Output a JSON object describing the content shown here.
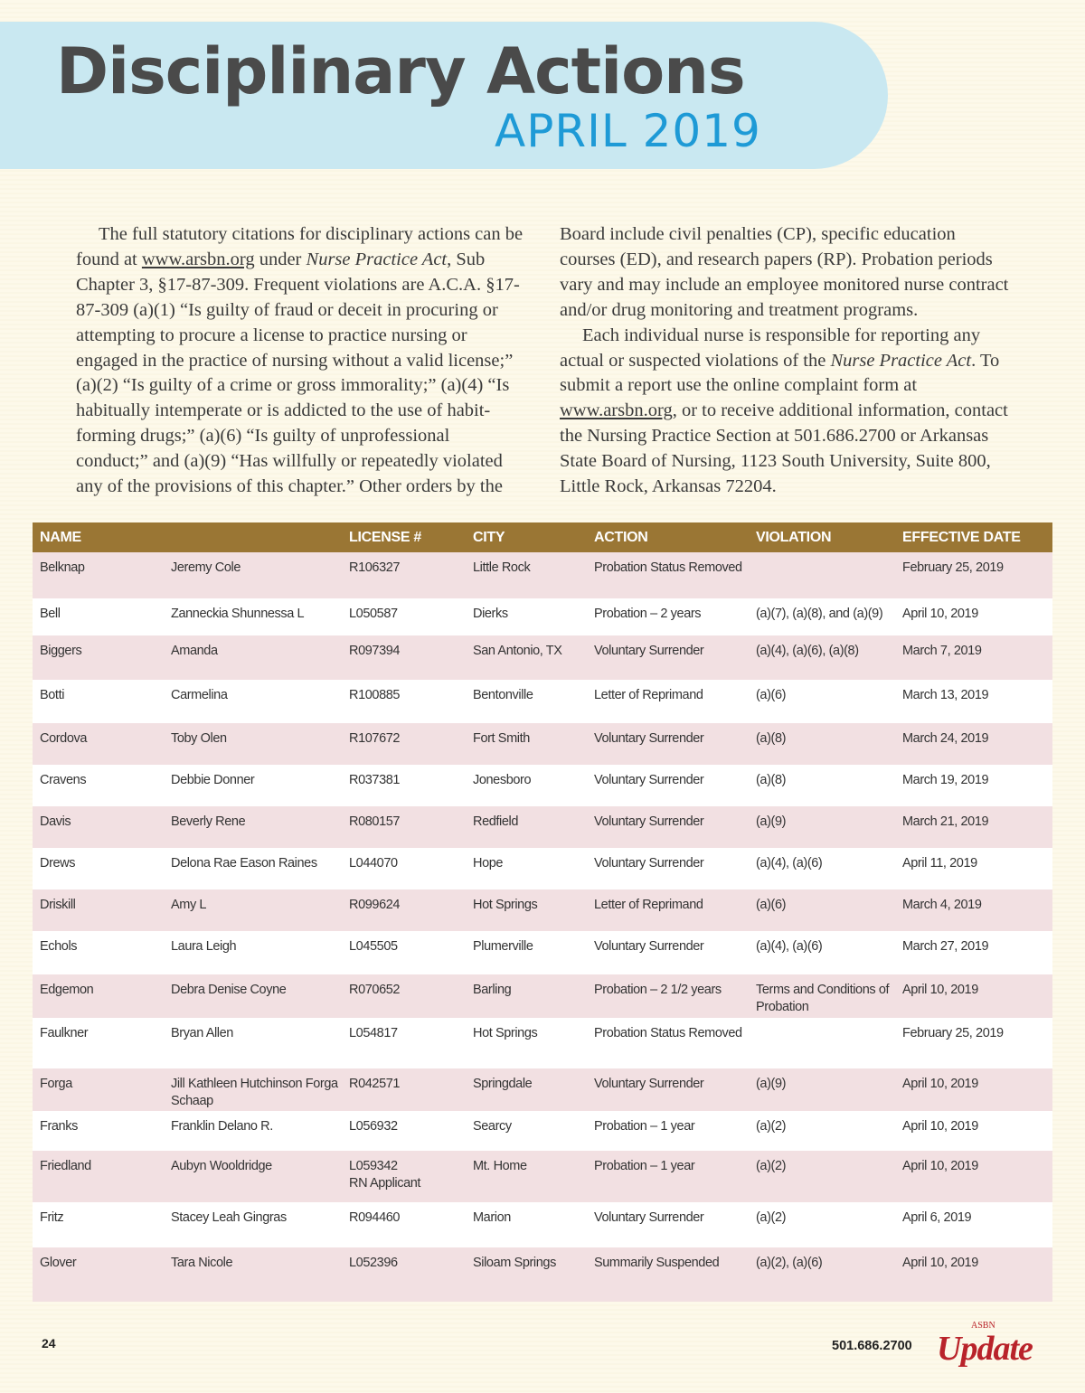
{
  "header": {
    "title": "Disciplinary Actions",
    "subtitle": "APRIL 2019"
  },
  "intro": {
    "paragraph1": [
      {
        "t": "text",
        "v": "The full statutory citations for disciplinary actions can be found at "
      },
      {
        "t": "link",
        "v": "www.arsbn.org"
      },
      {
        "t": "text",
        "v": " under "
      },
      {
        "t": "italic",
        "v": "Nurse Practice Act"
      },
      {
        "t": "text",
        "v": ", Sub Chapter 3, §17-87-309. Frequent violations are A.C.A. §17-87-309 (a)(1) “Is guilty of fraud or deceit in procuring or attempting to procure a license to practice nursing or engaged in the practice of nursing without a valid license;” (a)(2) “Is guilty of a crime or gross immorality;” (a)(4) “Is habitually intemperate or is addicted to the use of habit-forming drugs;” (a)(6) “Is guilty of unprofessional conduct;” and (a)(9) “Has willfully or repeatedly violated any of the provisions of this chapter.” Other orders by the Board include civil penalties (CP), specific education courses (ED), and research papers (RP). Probation periods vary and may include an employee monitored nurse contract and/or drug monitoring and treatment programs."
      }
    ],
    "paragraph2": [
      {
        "t": "text",
        "v": "Each individual nurse is responsible for reporting any actual or suspected violations of the "
      },
      {
        "t": "italic",
        "v": "Nurse Practice Act"
      },
      {
        "t": "text",
        "v": ". To submit a report use the online complaint form at "
      },
      {
        "t": "link",
        "v": "www.arsbn.org"
      },
      {
        "t": "text",
        "v": ", or to receive additional information, contact the Nursing Practice Section at 501.686.2700 or Arkansas State Board of Nursing, 1123 South University, Suite 800, Little Rock, Arkansas 72204."
      }
    ]
  },
  "table": {
    "columns": [
      "NAME",
      "",
      "LICENSE #",
      "CITY",
      "ACTION",
      "VIOLATION",
      "EFFECTIVE DATE"
    ],
    "rows": [
      [
        "Belknap",
        "Jeremy Cole",
        "R106327",
        "Little Rock",
        "Probation Status Removed",
        "",
        "February 25, 2019"
      ],
      [
        "Bell",
        "Zanneckia Shunnessa L",
        "L050587",
        "Dierks",
        "Probation – 2 years",
        "(a)(7), (a)(8), and (a)(9)",
        "April 10, 2019"
      ],
      [
        "Biggers",
        "Amanda",
        "R097394",
        "San Antonio, TX",
        "Voluntary Surrender",
        "(a)(4), (a)(6), (a)(8)",
        "March 7, 2019"
      ],
      [
        "Botti",
        "Carmelina",
        "R100885",
        "Bentonville",
        "Letter of Reprimand",
        "(a)(6)",
        "March 13, 2019"
      ],
      [
        "Cordova",
        "Toby Olen",
        "R107672",
        "Fort Smith",
        "Voluntary Surrender",
        "(a)(8)",
        "March 24, 2019"
      ],
      [
        "Cravens",
        "Debbie Donner",
        "R037381",
        "Jonesboro",
        "Voluntary Surrender",
        "(a)(8)",
        "March 19, 2019"
      ],
      [
        "Davis",
        "Beverly Rene",
        "R080157",
        "Redfield",
        "Voluntary Surrender",
        "(a)(9)",
        "March 21, 2019"
      ],
      [
        "Drews",
        "Delona Rae Eason Raines",
        "L044070",
        "Hope",
        "Voluntary Surrender",
        "(a)(4), (a)(6)",
        "April 11, 2019"
      ],
      [
        "Driskill",
        "Amy L",
        "R099624",
        "Hot Springs",
        "Letter of Reprimand",
        "(a)(6)",
        "March 4, 2019"
      ],
      [
        "Echols",
        "Laura Leigh",
        "L045505",
        "Plumerville",
        "Voluntary Surrender",
        "(a)(4), (a)(6)",
        "March 27, 2019"
      ],
      [
        "Edgemon",
        "Debra Denise Coyne",
        "R070652",
        "Barling",
        "Probation – 2 1/2 years",
        "Terms and Conditions of Probation",
        "April 10, 2019"
      ],
      [
        "Faulkner",
        "Bryan Allen",
        "L054817",
        "Hot Springs",
        "Probation Status Removed",
        "",
        "February 25, 2019"
      ],
      [
        "Forga",
        "Jill Kathleen Hutchinson Forga Schaap",
        "R042571",
        "Springdale",
        "Voluntary Surrender",
        "(a)(9)",
        "April 10, 2019"
      ],
      [
        "Franks",
        "Franklin Delano R.",
        "L056932",
        "Searcy",
        "Probation – 1 year",
        "(a)(2)",
        "April 10, 2019"
      ],
      [
        "Friedland",
        "Aubyn Wooldridge",
        "L059342\nRN Applicant",
        "Mt. Home",
        "Probation – 1 year",
        "(a)(2)",
        "April 10, 2019"
      ],
      [
        "Fritz",
        "Stacey Leah Gingras",
        "R094460",
        "Marion",
        "Voluntary Surrender",
        "(a)(2)",
        "April 6, 2019"
      ],
      [
        "Glover",
        "Tara Nicole",
        "L052396",
        "Siloam Springs",
        "Summarily Suspended",
        "(a)(2), (a)(6)",
        "April 10, 2019"
      ]
    ]
  },
  "footer": {
    "page_number": "24",
    "phone": "501.686.2700",
    "logo_text": "ASBN Update"
  },
  "colors": {
    "header_bg": "#c9e8f1",
    "subtitle": "#1e9ad6",
    "table_header": "#9a7634",
    "row_alt": "#f2e0e2",
    "logo": "#b9232a"
  }
}
